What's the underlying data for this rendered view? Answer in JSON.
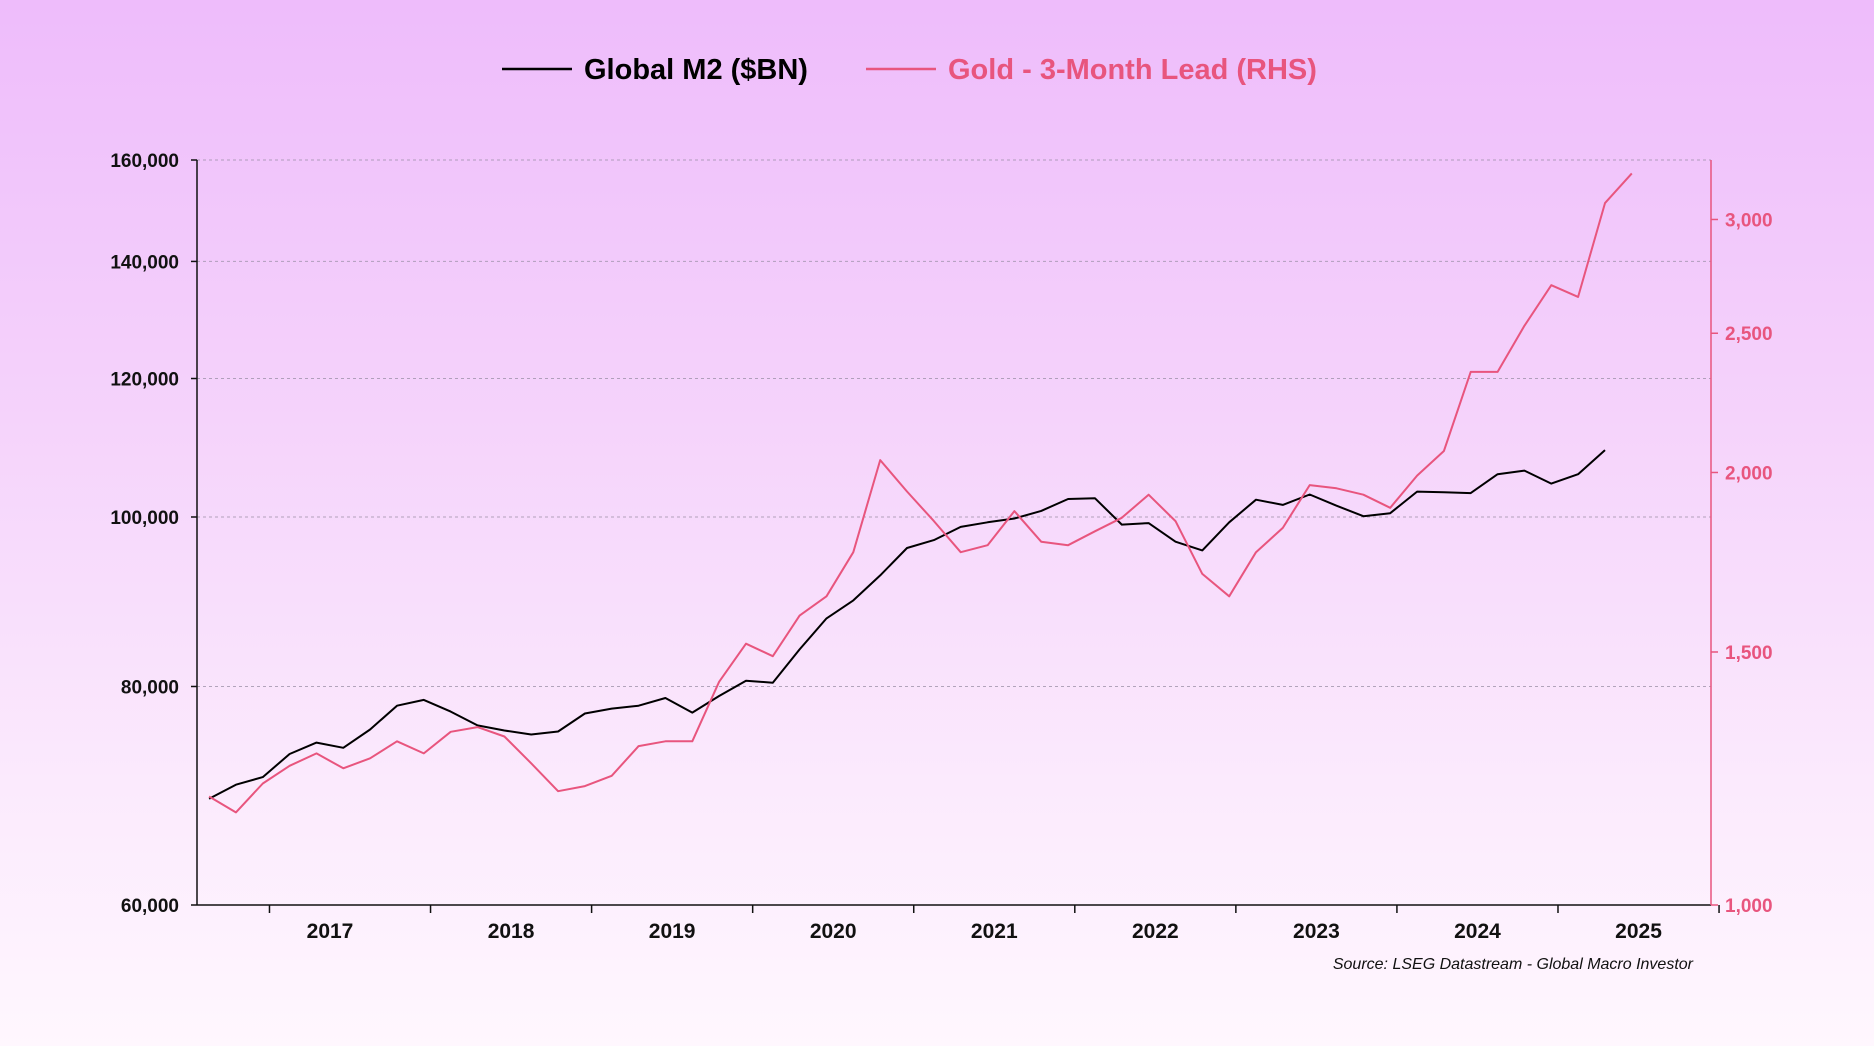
{
  "chart_data": {
    "type": "line",
    "title": "",
    "source": "Source: LSEG Datastream - Global Macro Investor",
    "legend_position": "top-center",
    "grid": true,
    "x_ticks": [
      "2017",
      "2018",
      "2019",
      "2020",
      "2021",
      "2022",
      "2023",
      "2024",
      "2025"
    ],
    "y_left": {
      "scale": "log",
      "ylim": [
        60000,
        160000
      ],
      "ticks": [
        60000,
        80000,
        100000,
        120000,
        140000,
        160000
      ],
      "tick_labels": [
        "60,000",
        "80,000",
        "100,000",
        "120,000",
        "140,000",
        "160,000"
      ]
    },
    "y_right": {
      "scale": "log",
      "ylim": [
        1000,
        3300
      ],
      "ticks": [
        1000,
        1500,
        2000,
        2500,
        3000
      ],
      "tick_labels": [
        "1,000",
        "1,500",
        "2,000",
        "2,500",
        "3,000"
      ]
    },
    "series": [
      {
        "name": "Global M2 ($BN)",
        "axis": "left",
        "color": "#000000",
        "points": [
          [
            "2016-08",
            69000
          ],
          [
            "2016-10",
            70300
          ],
          [
            "2016-12",
            71000
          ],
          [
            "2017-02",
            73200
          ],
          [
            "2017-04",
            74300
          ],
          [
            "2017-06",
            73800
          ],
          [
            "2017-08",
            75600
          ],
          [
            "2017-10",
            78000
          ],
          [
            "2017-12",
            78600
          ],
          [
            "2018-02",
            77400
          ],
          [
            "2018-04",
            76000
          ],
          [
            "2018-06",
            75500
          ],
          [
            "2018-08",
            75100
          ],
          [
            "2018-10",
            75400
          ],
          [
            "2018-12",
            77200
          ],
          [
            "2019-02",
            77700
          ],
          [
            "2019-04",
            78000
          ],
          [
            "2019-06",
            78800
          ],
          [
            "2019-08",
            77300
          ],
          [
            "2019-10",
            79000
          ],
          [
            "2019-12",
            80600
          ],
          [
            "2020-02",
            80400
          ],
          [
            "2020-04",
            84000
          ],
          [
            "2020-06",
            87500
          ],
          [
            "2020-08",
            89600
          ],
          [
            "2020-10",
            92600
          ],
          [
            "2020-12",
            96000
          ],
          [
            "2021-02",
            97000
          ],
          [
            "2021-04",
            98700
          ],
          [
            "2021-06",
            99300
          ],
          [
            "2021-08",
            99800
          ],
          [
            "2021-10",
            100800
          ],
          [
            "2021-12",
            102400
          ],
          [
            "2022-02",
            102500
          ],
          [
            "2022-04",
            99000
          ],
          [
            "2022-06",
            99200
          ],
          [
            "2022-08",
            96800
          ],
          [
            "2022-10",
            95700
          ],
          [
            "2022-12",
            99300
          ],
          [
            "2023-02",
            102300
          ],
          [
            "2023-04",
            101600
          ],
          [
            "2023-06",
            103000
          ],
          [
            "2023-08",
            101500
          ],
          [
            "2023-10",
            100100
          ],
          [
            "2023-12",
            100500
          ],
          [
            "2024-02",
            103400
          ],
          [
            "2024-04",
            103300
          ],
          [
            "2024-06",
            103200
          ],
          [
            "2024-08",
            105800
          ],
          [
            "2024-10",
            106300
          ],
          [
            "2024-12",
            104500
          ],
          [
            "2025-02",
            105800
          ],
          [
            "2025-04",
            109200
          ]
        ]
      },
      {
        "name": "Gold - 3-Month Lead (RHS)",
        "axis": "right",
        "color": "#e8557e",
        "points": [
          [
            "2016-08",
            1190
          ],
          [
            "2016-10",
            1160
          ],
          [
            "2016-12",
            1215
          ],
          [
            "2017-02",
            1250
          ],
          [
            "2017-04",
            1275
          ],
          [
            "2017-06",
            1245
          ],
          [
            "2017-08",
            1265
          ],
          [
            "2017-10",
            1300
          ],
          [
            "2017-12",
            1275
          ],
          [
            "2018-02",
            1320
          ],
          [
            "2018-04",
            1330
          ],
          [
            "2018-06",
            1310
          ],
          [
            "2018-08",
            1255
          ],
          [
            "2018-10",
            1200
          ],
          [
            "2018-12",
            1210
          ],
          [
            "2019-02",
            1230
          ],
          [
            "2019-04",
            1290
          ],
          [
            "2019-06",
            1300
          ],
          [
            "2019-08",
            1300
          ],
          [
            "2019-10",
            1430
          ],
          [
            "2019-12",
            1520
          ],
          [
            "2020-02",
            1490
          ],
          [
            "2020-04",
            1590
          ],
          [
            "2020-06",
            1640
          ],
          [
            "2020-08",
            1760
          ],
          [
            "2020-10",
            2040
          ],
          [
            "2020-12",
            1940
          ],
          [
            "2021-02",
            1850
          ],
          [
            "2021-04",
            1760
          ],
          [
            "2021-06",
            1780
          ],
          [
            "2021-08",
            1880
          ],
          [
            "2021-10",
            1790
          ],
          [
            "2021-12",
            1780
          ],
          [
            "2022-02",
            1820
          ],
          [
            "2022-04",
            1860
          ],
          [
            "2022-06",
            1930
          ],
          [
            "2022-08",
            1850
          ],
          [
            "2022-10",
            1700
          ],
          [
            "2022-12",
            1640
          ],
          [
            "2023-02",
            1760
          ],
          [
            "2023-04",
            1830
          ],
          [
            "2023-06",
            1960
          ],
          [
            "2023-08",
            1950
          ],
          [
            "2023-10",
            1930
          ],
          [
            "2023-12",
            1890
          ],
          [
            "2024-02",
            1990
          ],
          [
            "2024-04",
            2070
          ],
          [
            "2024-06",
            2350
          ],
          [
            "2024-08",
            2350
          ],
          [
            "2024-10",
            2530
          ],
          [
            "2024-12",
            2700
          ],
          [
            "2025-02",
            2650
          ],
          [
            "2025-04",
            3080
          ],
          [
            "2025-06",
            3230
          ]
        ]
      }
    ]
  }
}
